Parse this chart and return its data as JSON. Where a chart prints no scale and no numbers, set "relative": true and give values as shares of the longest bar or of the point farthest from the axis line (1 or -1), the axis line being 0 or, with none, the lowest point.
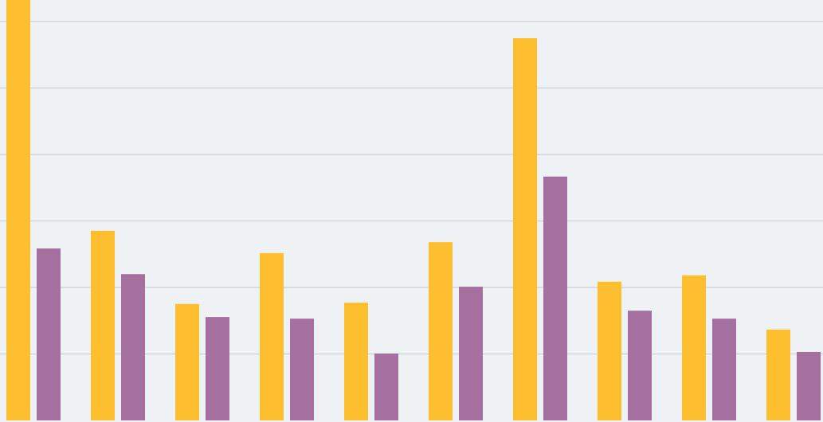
{
  "chart_data": {
    "type": "bar",
    "relative": true,
    "grid": true,
    "categories": [
      null,
      null,
      null,
      null,
      null,
      null,
      null,
      null,
      null,
      null
    ],
    "series": [
      {
        "color": "#fdbf2f",
        "values": [
          1,
          0.451,
          0.277,
          0.398,
          0.28,
          0.424,
          0.909,
          0.33,
          0.345,
          0.216
        ]
      },
      {
        "color": "#a5709f",
        "values": [
          0.409,
          0.348,
          0.246,
          0.242,
          0.159,
          0.318,
          0.58,
          0.261,
          0.242,
          0.163
        ]
      }
    ]
  }
}
